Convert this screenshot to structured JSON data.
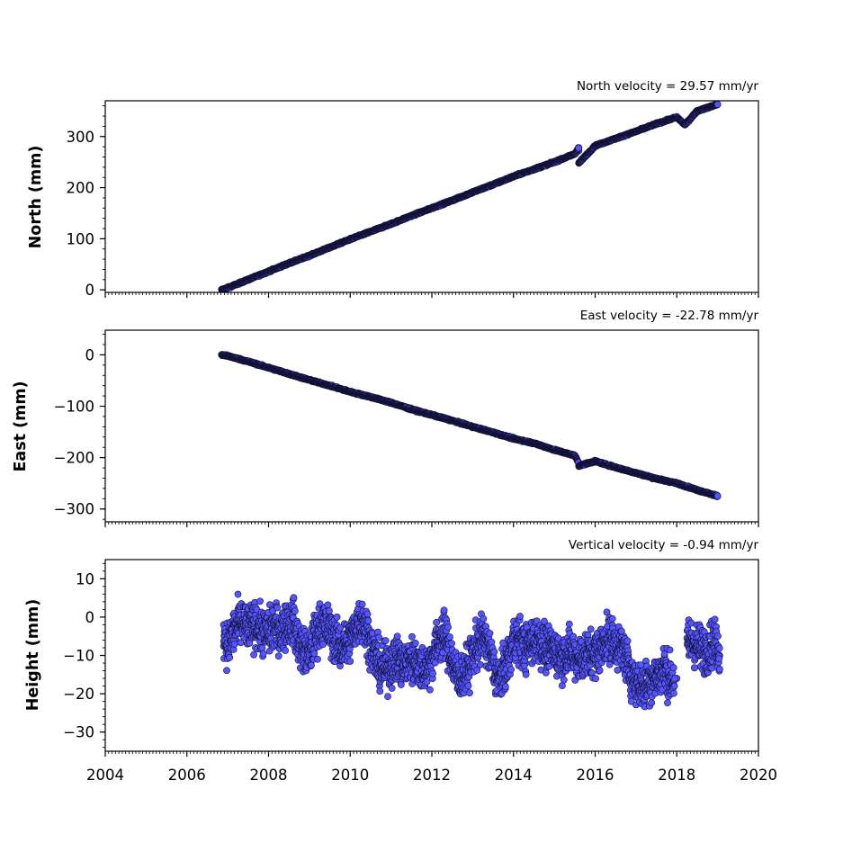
{
  "chart_data": [
    {
      "type": "scatter",
      "id": "north",
      "title": "North velocity = 29.57 mm/yr",
      "ylabel": "North (mm)",
      "xlabel": "",
      "xlim": [
        2004,
        2020
      ],
      "ylim": [
        -5,
        370
      ],
      "yticks": [
        0,
        100,
        200,
        300
      ],
      "ytick_labels": [
        "0",
        "100",
        "200",
        "300"
      ],
      "show_xtick_labels": false,
      "grid": false,
      "marker_color": "#5555ff",
      "marker_edge": "#111133",
      "series": [
        {
          "x": [
            2006.85,
            2007.0,
            2007.5,
            2008.0,
            2008.5,
            2009.0,
            2009.5,
            2010.0,
            2010.5,
            2011.0,
            2011.5,
            2012.0,
            2012.5,
            2013.0,
            2013.5,
            2014.0,
            2014.5,
            2015.0,
            2015.5,
            2015.6,
            2015.6,
            2015.6,
            2016.0,
            2016.5,
            2017.0,
            2017.5,
            2018.0,
            2018.2,
            2018.5,
            2019.0
          ],
          "y": [
            0,
            4,
            20,
            36,
            52,
            67,
            83,
            99,
            114,
            129,
            145,
            160,
            175,
            191,
            206,
            222,
            236,
            250,
            266,
            278,
            272,
            248,
            282,
            296,
            310,
            325,
            338,
            323,
            350,
            363
          ]
        }
      ]
    },
    {
      "type": "scatter",
      "id": "east",
      "title": "East velocity = -22.78 mm/yr",
      "ylabel": "East (mm)",
      "xlabel": "",
      "xlim": [
        2004,
        2020
      ],
      "ylim": [
        -325,
        48
      ],
      "yticks": [
        0,
        -100,
        -200,
        -300
      ],
      "ytick_labels": [
        "0",
        "−100",
        "−200",
        "−300"
      ],
      "show_xtick_labels": false,
      "grid": false,
      "marker_color": "#5555ff",
      "marker_edge": "#111133",
      "series": [
        {
          "x": [
            2006.85,
            2007.0,
            2007.5,
            2008.0,
            2008.5,
            2009.0,
            2009.5,
            2010.0,
            2010.5,
            2011.0,
            2011.5,
            2012.0,
            2012.5,
            2013.0,
            2013.5,
            2014.0,
            2014.5,
            2015.0,
            2015.5,
            2015.6,
            2015.6,
            2016.0,
            2016.5,
            2017.0,
            2017.5,
            2018.0,
            2018.5,
            2019.0
          ],
          "y": [
            0,
            -2,
            -13,
            -25,
            -37,
            -49,
            -60,
            -72,
            -82,
            -93,
            -106,
            -117,
            -128,
            -140,
            -151,
            -163,
            -172,
            -185,
            -196,
            -210,
            -216,
            -207,
            -219,
            -230,
            -241,
            -250,
            -263,
            -275
          ]
        }
      ]
    },
    {
      "type": "scatter",
      "id": "height",
      "title": "Vertical velocity = -0.94 mm/yr",
      "ylabel": "Height (mm)",
      "xlabel": "",
      "xlim": [
        2004,
        2020
      ],
      "ylim": [
        -35,
        15
      ],
      "yticks": [
        10,
        0,
        -10,
        -20,
        -30
      ],
      "ytick_labels": [
        "10",
        "0",
        "−10",
        "−20",
        "−30"
      ],
      "xticks": [
        2004,
        2006,
        2008,
        2010,
        2012,
        2014,
        2016,
        2018,
        2020
      ],
      "xtick_labels": [
        "2004",
        "2006",
        "2008",
        "2010",
        "2012",
        "2014",
        "2016",
        "2018",
        "2020"
      ],
      "show_xtick_labels": true,
      "grid": false,
      "marker_color": "#5555ff",
      "marker_edge": "#111133",
      "series": [
        {
          "x": [
            2006.9,
            2007.0,
            2007.2,
            2007.5,
            2007.7,
            2008.0,
            2008.3,
            2008.6,
            2009.0,
            2009.3,
            2009.6,
            2010.0,
            2010.3,
            2010.6,
            2011.0,
            2011.3,
            2011.6,
            2012.0,
            2012.3,
            2012.6,
            2013.0,
            2013.3,
            2013.6,
            2014.0,
            2014.3,
            2014.6,
            2014.9,
            2015.2,
            2015.5,
            2015.8,
            2016.1,
            2016.4,
            2016.7,
            2017.0,
            2017.2,
            2017.4,
            2017.7,
            2018.0,
            2018.3,
            2018.6,
            2018.9,
            2019.05
          ],
          "y": [
            -2,
            -8,
            -6,
            -3,
            2,
            -4,
            -7,
            1,
            -10,
            -5,
            -3,
            -6,
            -4,
            -8,
            -12,
            -16,
            -9,
            -11,
            -8,
            -13,
            -10,
            -9,
            -14,
            -6,
            -12,
            -3,
            -6,
            -14,
            -10,
            -6,
            -11,
            -8,
            -5,
            -17,
            -22,
            -18,
            -10,
            -16,
            -10,
            -6,
            -4,
            -10
          ]
        }
      ]
    }
  ]
}
